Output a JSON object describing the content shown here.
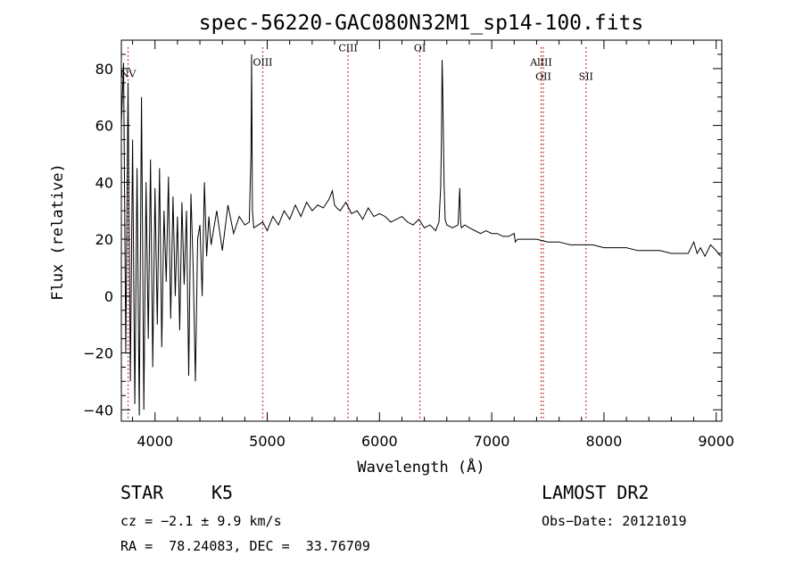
{
  "chart_data": {
    "type": "line",
    "title": "spec-56220-GAC080N32M1_sp14-100.fits",
    "xlabel": "Wavelength (Å)",
    "ylabel": "Flux (relative)",
    "xlim": [
      3700,
      9050
    ],
    "ylim": [
      -44,
      90
    ],
    "x_ticks": [
      4000,
      5000,
      6000,
      7000,
      8000,
      9000
    ],
    "y_ticks": [
      -40,
      -20,
      0,
      20,
      40,
      60,
      80
    ],
    "series": [
      {
        "name": "flux",
        "x": [
          3700,
          3720,
          3740,
          3760,
          3780,
          3800,
          3820,
          3840,
          3860,
          3880,
          3900,
          3920,
          3940,
          3960,
          3980,
          4000,
          4020,
          4040,
          4060,
          4080,
          4100,
          4120,
          4140,
          4160,
          4180,
          4200,
          4220,
          4240,
          4260,
          4280,
          4300,
          4320,
          4340,
          4360,
          4380,
          4400,
          4420,
          4440,
          4460,
          4480,
          4500,
          4550,
          4600,
          4650,
          4700,
          4750,
          4800,
          4840,
          4855,
          4861,
          4868,
          4880,
          4920,
          4960,
          5000,
          5050,
          5100,
          5150,
          5200,
          5250,
          5300,
          5350,
          5400,
          5450,
          5500,
          5550,
          5580,
          5600,
          5620,
          5650,
          5700,
          5750,
          5800,
          5850,
          5900,
          5950,
          6000,
          6050,
          6100,
          6150,
          6200,
          6250,
          6300,
          6350,
          6400,
          6450,
          6500,
          6530,
          6545,
          6552,
          6558,
          6563,
          6568,
          6575,
          6585,
          6600,
          6650,
          6700,
          6715,
          6722,
          6730,
          6760,
          6800,
          6850,
          6900,
          6950,
          7000,
          7050,
          7100,
          7150,
          7200,
          7210,
          7230,
          7300,
          7400,
          7500,
          7600,
          7700,
          7800,
          7900,
          8000,
          8100,
          8200,
          8300,
          8400,
          8500,
          8600,
          8700,
          8750,
          8800,
          8830,
          8860,
          8900,
          8950,
          9000,
          9040
        ],
        "y": [
          60,
          82,
          -20,
          75,
          -30,
          55,
          -38,
          45,
          -42,
          70,
          -40,
          40,
          -15,
          48,
          -25,
          38,
          -10,
          45,
          -18,
          30,
          5,
          42,
          -8,
          35,
          0,
          28,
          -12,
          33,
          4,
          30,
          -28,
          36,
          10,
          -30,
          20,
          25,
          0,
          40,
          14,
          28,
          18,
          30,
          16,
          32,
          22,
          28,
          25,
          26,
          50,
          85,
          30,
          24,
          25,
          26,
          23,
          28,
          25,
          30,
          27,
          32,
          28,
          33,
          30,
          32,
          31,
          34,
          37,
          32,
          31,
          30,
          33,
          29,
          30,
          27,
          31,
          28,
          29,
          28,
          26,
          27,
          28,
          26,
          25,
          27,
          24,
          25,
          23,
          26,
          38,
          55,
          83,
          75,
          60,
          40,
          27,
          25,
          24,
          25,
          38,
          26,
          24,
          25,
          24,
          23,
          22,
          23,
          22,
          22,
          21,
          21,
          22,
          19,
          20,
          20,
          20,
          19,
          19,
          18,
          18,
          18,
          17,
          17,
          17,
          16,
          16,
          16,
          15,
          15,
          15,
          19,
          15,
          17,
          14,
          18,
          16,
          14
        ]
      }
    ],
    "spectral_lines": [
      {
        "label": "NV",
        "x": 3760,
        "label_y": 77,
        "color": "#bb0000"
      },
      {
        "label": "OIII",
        "x": 4960,
        "label_y": 81,
        "color": "#bb0000"
      },
      {
        "label": "CIII",
        "x": 5720,
        "label_y": 86,
        "color": "#bb0000"
      },
      {
        "label": "OI",
        "x": 6360,
        "label_y": 86,
        "color": "#bb0000"
      },
      {
        "label": "AlIII",
        "x": 7440,
        "label_y": 81,
        "color": "#bb0000"
      },
      {
        "label": "OII",
        "x": 7460,
        "label_y": 76,
        "color": "#bb0000"
      },
      {
        "label": "SII",
        "x": 7840,
        "label_y": 76,
        "color": "#bb0000"
      }
    ]
  },
  "info": {
    "class": "STAR",
    "subclass": "K5",
    "survey": "LAMOST DR2",
    "cz": "cz = −2.1 ± 9.9 km/s",
    "obs_date": "Obs−Date: 20121019",
    "radec": "RA =  78.24083, DEC =  33.76709"
  }
}
